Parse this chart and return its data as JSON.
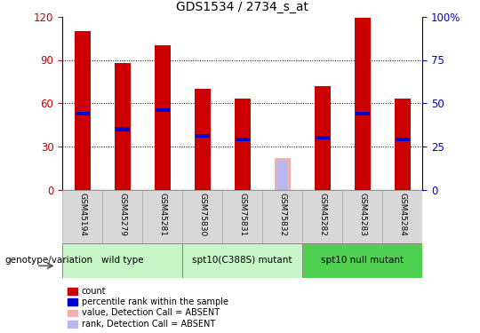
{
  "title": "GDS1534 / 2734_s_at",
  "samples": [
    "GSM45194",
    "GSM45279",
    "GSM45281",
    "GSM75830",
    "GSM75831",
    "GSM75832",
    "GSM45282",
    "GSM45283",
    "GSM45284"
  ],
  "count_values": [
    110,
    88,
    100,
    70,
    63,
    0,
    72,
    119,
    63
  ],
  "percentile_values": [
    44,
    35,
    46,
    31,
    29,
    0,
    30,
    44,
    29
  ],
  "absent_count": [
    0,
    0,
    0,
    0,
    0,
    22,
    0,
    0,
    0
  ],
  "absent_rank": [
    0,
    0,
    0,
    0,
    0,
    17,
    0,
    0,
    0
  ],
  "is_absent": [
    false,
    false,
    false,
    false,
    false,
    true,
    false,
    false,
    false
  ],
  "group_labels": [
    "wild type",
    "spt10(C388S) mutant",
    "spt10 null mutant"
  ],
  "group_starts": [
    0,
    3,
    6
  ],
  "group_ends": [
    3,
    6,
    9
  ],
  "group_colors": [
    "#c8f5c8",
    "#c8f5c8",
    "#50d050"
  ],
  "ylim_left": [
    0,
    120
  ],
  "ylim_right": [
    0,
    100
  ],
  "yticks_left": [
    0,
    30,
    60,
    90,
    120
  ],
  "yticks_right": [
    0,
    25,
    50,
    75,
    100
  ],
  "ytick_labels_right": [
    "0",
    "25",
    "50",
    "75",
    "100%"
  ],
  "bar_color": "#cc0000",
  "percentile_color": "#0000cc",
  "absent_bar_color": "#f0b0b0",
  "absent_rank_color": "#b8b8f0",
  "bar_width": 0.4,
  "legend_items": [
    {
      "label": "count",
      "color": "#cc0000"
    },
    {
      "label": "percentile rank within the sample",
      "color": "#0000cc"
    },
    {
      "label": "value, Detection Call = ABSENT",
      "color": "#f0b0b0"
    },
    {
      "label": "rank, Detection Call = ABSENT",
      "color": "#b8b8f0"
    }
  ],
  "genotype_label": "genotype/variation",
  "background_color": "#ffffff",
  "tick_label_color_left": "#cc0000",
  "tick_label_color_right": "#0000cc",
  "sample_box_color": "#d8d8d8",
  "sample_box_edge": "#aaaaaa"
}
